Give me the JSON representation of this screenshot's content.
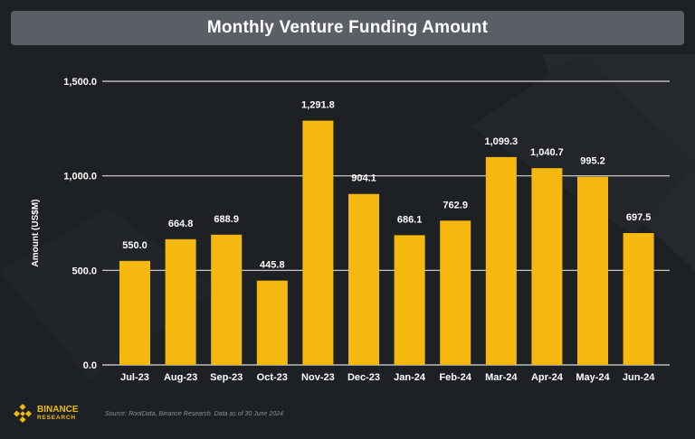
{
  "colors": {
    "background": "#1e2124",
    "title_bar": "#5a5f66",
    "bar": "#f5b80f",
    "grid": "#d9d9d9",
    "text": "#ffffff",
    "brand": "#f0b90b",
    "source": "#8a8f96"
  },
  "brand": {
    "icon": "binance-diamond-icon",
    "top": "BINANCE",
    "bottom": "RESEARCH"
  },
  "source": "Source: RootData, Binance Research. Data as of 30 June 2024.",
  "chart_data": {
    "type": "bar",
    "title": "Monthly Venture Funding Amount",
    "xlabel": "",
    "ylabel": "Amount (US$M)",
    "ylim": [
      0,
      1500
    ],
    "yticks": [
      0,
      500,
      1000,
      1500
    ],
    "ytick_labels": [
      "0.0",
      "500.0",
      "1,000.0",
      "1,500.0"
    ],
    "grid": true,
    "categories": [
      "Jul-23",
      "Aug-23",
      "Sep-23",
      "Oct-23",
      "Nov-23",
      "Dec-23",
      "Jan-24",
      "Feb-24",
      "Mar-24",
      "Apr-24",
      "May-24",
      "Jun-24"
    ],
    "values": [
      550.0,
      664.8,
      688.9,
      445.8,
      1291.8,
      904.1,
      686.1,
      762.9,
      1099.3,
      1040.7,
      995.2,
      697.5
    ],
    "data_labels": [
      "550.0",
      "664.8",
      "688.9",
      "445.8",
      "1,291.8",
      "904.1",
      "686.1",
      "762.9",
      "1,099.3",
      "1,040.7",
      "995.2",
      "697.5"
    ]
  }
}
